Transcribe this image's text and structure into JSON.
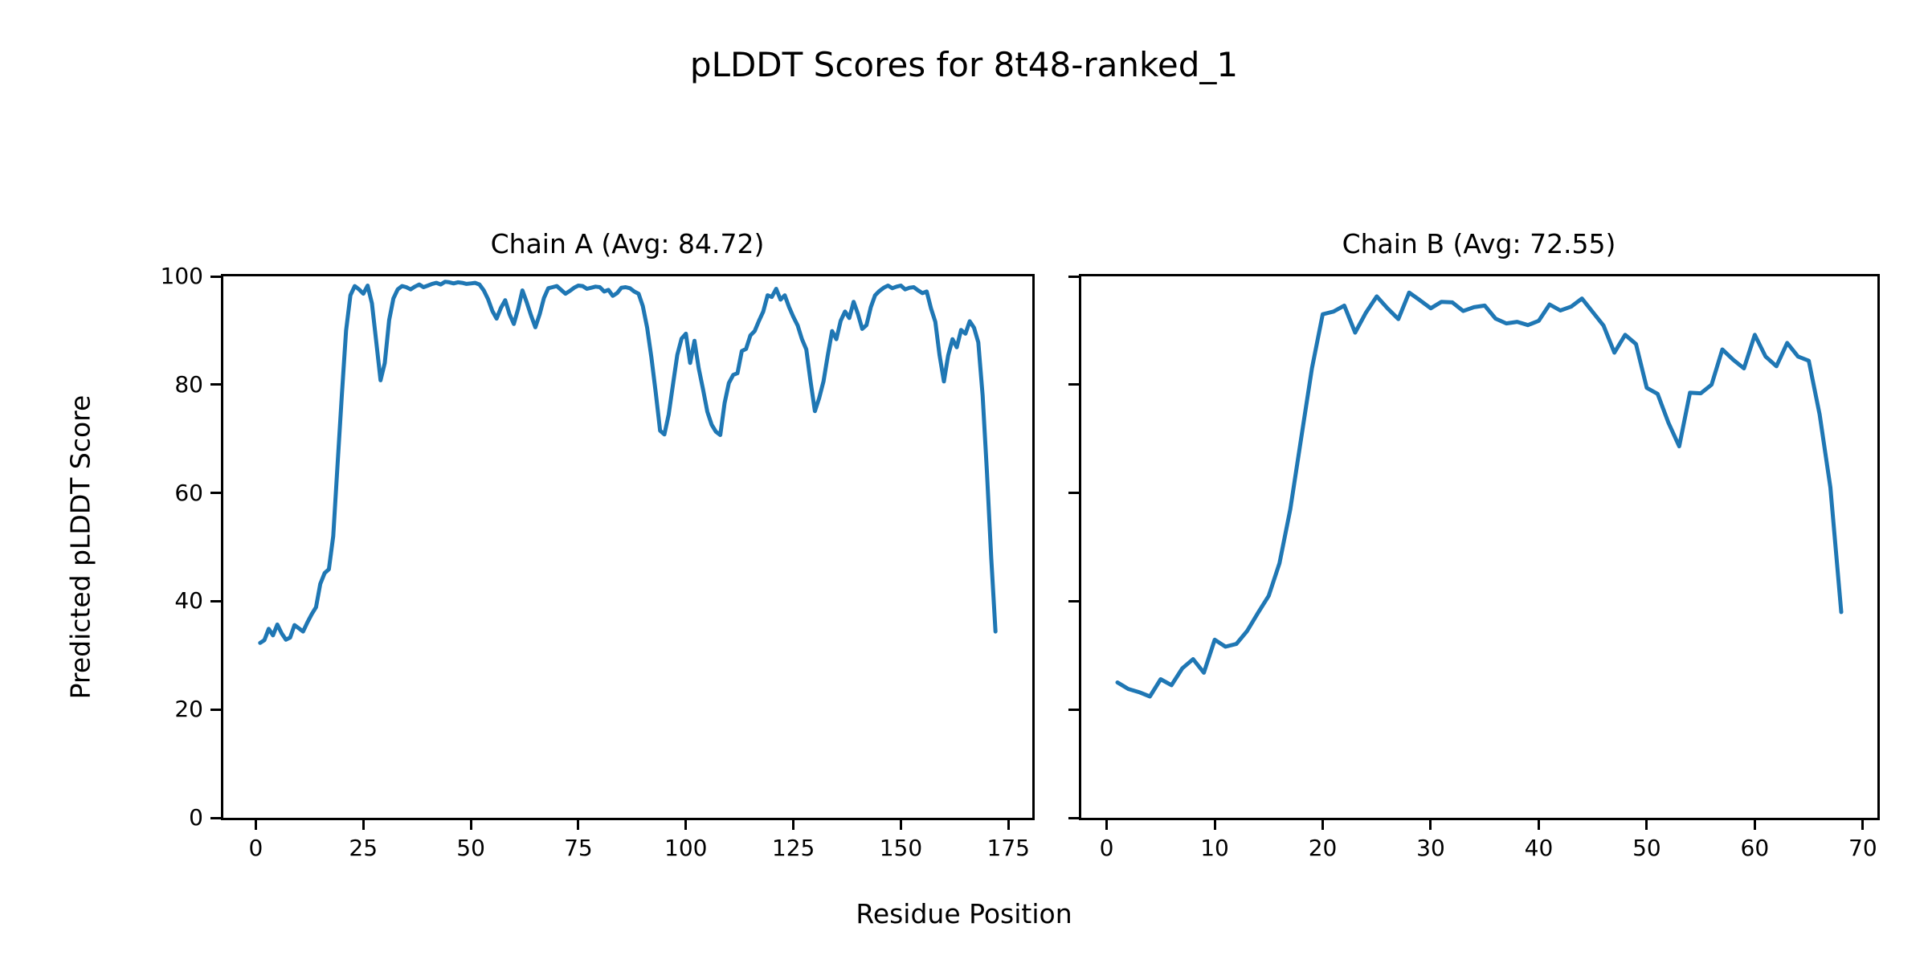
{
  "figure": {
    "suptitle": "pLDDT Scores for 8t48-ranked_1",
    "xlabel": "Residue Position",
    "ylabel": "Predicted pLDDT Score",
    "background_color": "#ffffff",
    "text_color": "#000000",
    "accent_line_color": "#1f77b4"
  },
  "chart_data": [
    {
      "type": "line",
      "title": "Chain A (Avg: 84.72)",
      "xlabel": "Residue Position",
      "ylabel": "Predicted pLDDT Score",
      "legend": "none",
      "grid": false,
      "line_color": "#1f77b4",
      "x_start": 1,
      "x_step": 1,
      "xlim": [
        -7.55,
        180.55
      ],
      "ylim": [
        0,
        100
      ],
      "xticks": [
        0,
        25,
        50,
        75,
        100,
        125,
        150,
        175
      ],
      "yticks": [
        0,
        20,
        40,
        60,
        80,
        100
      ],
      "show_ytick_labels": true,
      "values": [
        32.3,
        32.8,
        34.9,
        33.7,
        35.7,
        34.1,
        32.9,
        33.3,
        35.6,
        35.0,
        34.4,
        36.1,
        37.6,
        38.9,
        43.2,
        45.2,
        45.9,
        52.0,
        65.0,
        78.0,
        90.0,
        96.5,
        98.2,
        97.6,
        96.8,
        98.3,
        95.0,
        88.0,
        80.8,
        84.0,
        91.9,
        95.9,
        97.6,
        98.2,
        98.0,
        97.6,
        98.1,
        98.5,
        98.0,
        98.3,
        98.6,
        98.8,
        98.5,
        99.0,
        98.9,
        98.7,
        98.9,
        98.8,
        98.6,
        98.7,
        98.8,
        98.5,
        97.4,
        95.8,
        93.6,
        92.2,
        94.2,
        95.6,
        93.0,
        91.2,
        94.0,
        97.4,
        95.2,
        92.8,
        90.6,
        93.0,
        96.0,
        97.8,
        98.0,
        98.2,
        97.5,
        96.8,
        97.3,
        97.9,
        98.3,
        98.2,
        97.7,
        97.9,
        98.1,
        98.0,
        97.2,
        97.5,
        96.4,
        96.9,
        97.9,
        98.0,
        97.8,
        97.2,
        96.8,
        94.5,
        90.5,
        85.0,
        78.5,
        71.5,
        70.8,
        74.5,
        80.0,
        85.5,
        88.5,
        89.4,
        84.0,
        88.1,
        83.0,
        79.1,
        75.0,
        72.6,
        71.3,
        70.7,
        76.6,
        80.3,
        81.8,
        82.1,
        86.2,
        86.6,
        89.1,
        89.9,
        91.8,
        93.5,
        96.5,
        96.2,
        97.7,
        95.7,
        96.5,
        94.3,
        92.5,
        90.9,
        88.4,
        86.5,
        80.6,
        75.1,
        77.5,
        80.6,
        85.4,
        89.9,
        88.4,
        91.8,
        93.5,
        92.3,
        95.3,
        93.1,
        90.3,
        91.0,
        94.3,
        96.5,
        97.3,
        97.9,
        98.3,
        97.8,
        98.1,
        98.3,
        97.6,
        97.9,
        98.0,
        97.4,
        96.9,
        97.2,
        94.1,
        91.6,
        85.4,
        80.6,
        85.4,
        88.4,
        86.9,
        90.1,
        89.4,
        91.7,
        90.5,
        87.8,
        78.0,
        64.0,
        48.0,
        34.4
      ]
    },
    {
      "type": "line",
      "title": "Chain B (Avg: 72.55)",
      "xlabel": "Residue Position",
      "ylabel": "Predicted pLDDT Score",
      "legend": "none",
      "grid": false,
      "line_color": "#1f77b4",
      "x_start": 1,
      "x_step": 1,
      "xlim": [
        -2.35,
        71.35
      ],
      "ylim": [
        0,
        100
      ],
      "xticks": [
        0,
        10,
        20,
        30,
        40,
        50,
        60,
        70
      ],
      "yticks": [
        0,
        20,
        40,
        60,
        80,
        100
      ],
      "show_ytick_labels": false,
      "values": [
        25.0,
        23.8,
        23.2,
        22.4,
        25.6,
        24.5,
        27.6,
        29.3,
        26.8,
        32.9,
        31.6,
        32.1,
        34.5,
        37.8,
        41.0,
        47.0,
        57.0,
        70.0,
        83.0,
        93.0,
        93.5,
        94.6,
        89.6,
        93.3,
        96.3,
        94.1,
        92.1,
        97.0,
        95.6,
        94.1,
        95.3,
        95.2,
        93.6,
        94.3,
        94.6,
        92.2,
        91.3,
        91.6,
        91.0,
        91.8,
        94.8,
        93.7,
        94.4,
        95.9,
        93.4,
        90.9,
        85.9,
        89.2,
        87.5,
        79.4,
        78.3,
        73.0,
        68.6,
        78.5,
        78.4,
        80.0,
        86.5,
        84.6,
        83.0,
        89.2,
        85.2,
        83.4,
        87.7,
        85.2,
        84.4,
        74.5,
        61.0,
        38.0
      ]
    }
  ]
}
